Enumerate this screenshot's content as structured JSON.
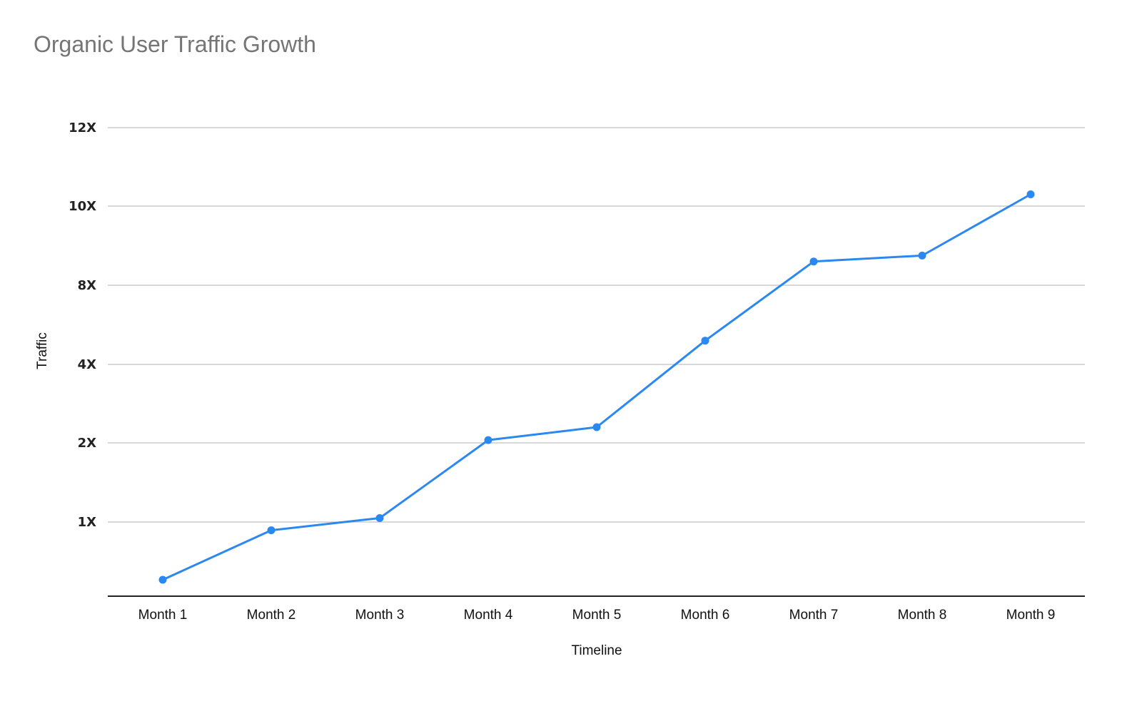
{
  "chart_data": {
    "type": "line",
    "title": "Organic User Traffic Growth",
    "xlabel": "Timeline",
    "ylabel": "Traffic",
    "categories": [
      "Month 1",
      "Month 2",
      "Month 3",
      "Month 4",
      "Month 5",
      "Month 6",
      "Month 7",
      "Month 8",
      "Month 9"
    ],
    "y_tick_labels": [
      "1X",
      "2X",
      "4X",
      "8X",
      "10X",
      "12X"
    ],
    "series": [
      {
        "name": "Traffic",
        "color": "#2b88f0",
        "values": [
          0.3,
          0.9,
          1.05,
          2.07,
          2.4,
          5.2,
          8.6,
          8.75,
          10.3
        ]
      }
    ],
    "grid": true,
    "legend": "none",
    "colors": {
      "line": "#2b88f0",
      "grid": "#cccccc",
      "axis": "#222222",
      "title": "#757575"
    }
  }
}
